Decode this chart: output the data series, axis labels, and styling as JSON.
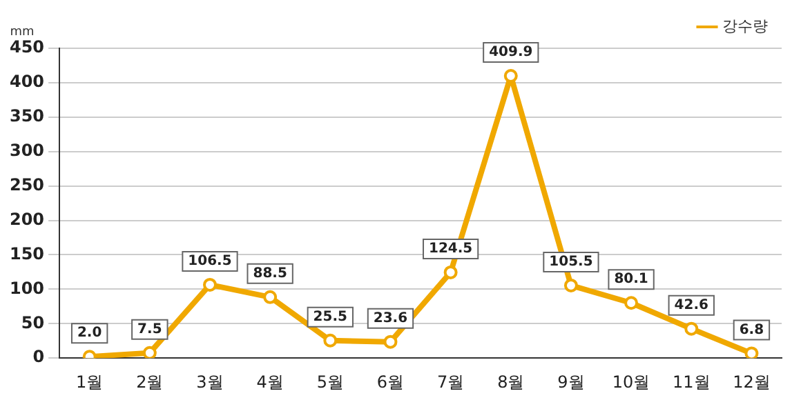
{
  "chart_data": {
    "type": "line",
    "ylabel": "mm",
    "categories": [
      "1월",
      "2월",
      "3월",
      "4월",
      "5월",
      "6월",
      "7월",
      "8월",
      "9월",
      "10월",
      "11월",
      "12월"
    ],
    "series": [
      {
        "name": "강수량",
        "color": "#f0a800",
        "values": [
          2.0,
          7.5,
          106.5,
          88.5,
          25.5,
          23.6,
          124.5,
          409.9,
          105.5,
          80.1,
          42.6,
          6.8
        ],
        "value_labels": [
          "2.0",
          "7.5",
          "106.5",
          "88.5",
          "25.5",
          "23.6",
          "124.5",
          "409.9",
          "105.5",
          "80.1",
          "42.6",
          "6.8"
        ]
      }
    ],
    "ylim": [
      0,
      450
    ],
    "yticks": [
      0,
      50,
      100,
      150,
      200,
      250,
      300,
      350,
      400,
      450
    ],
    "grid": "y",
    "legend": "top right",
    "marker": "circle",
    "line_style": "solid"
  }
}
